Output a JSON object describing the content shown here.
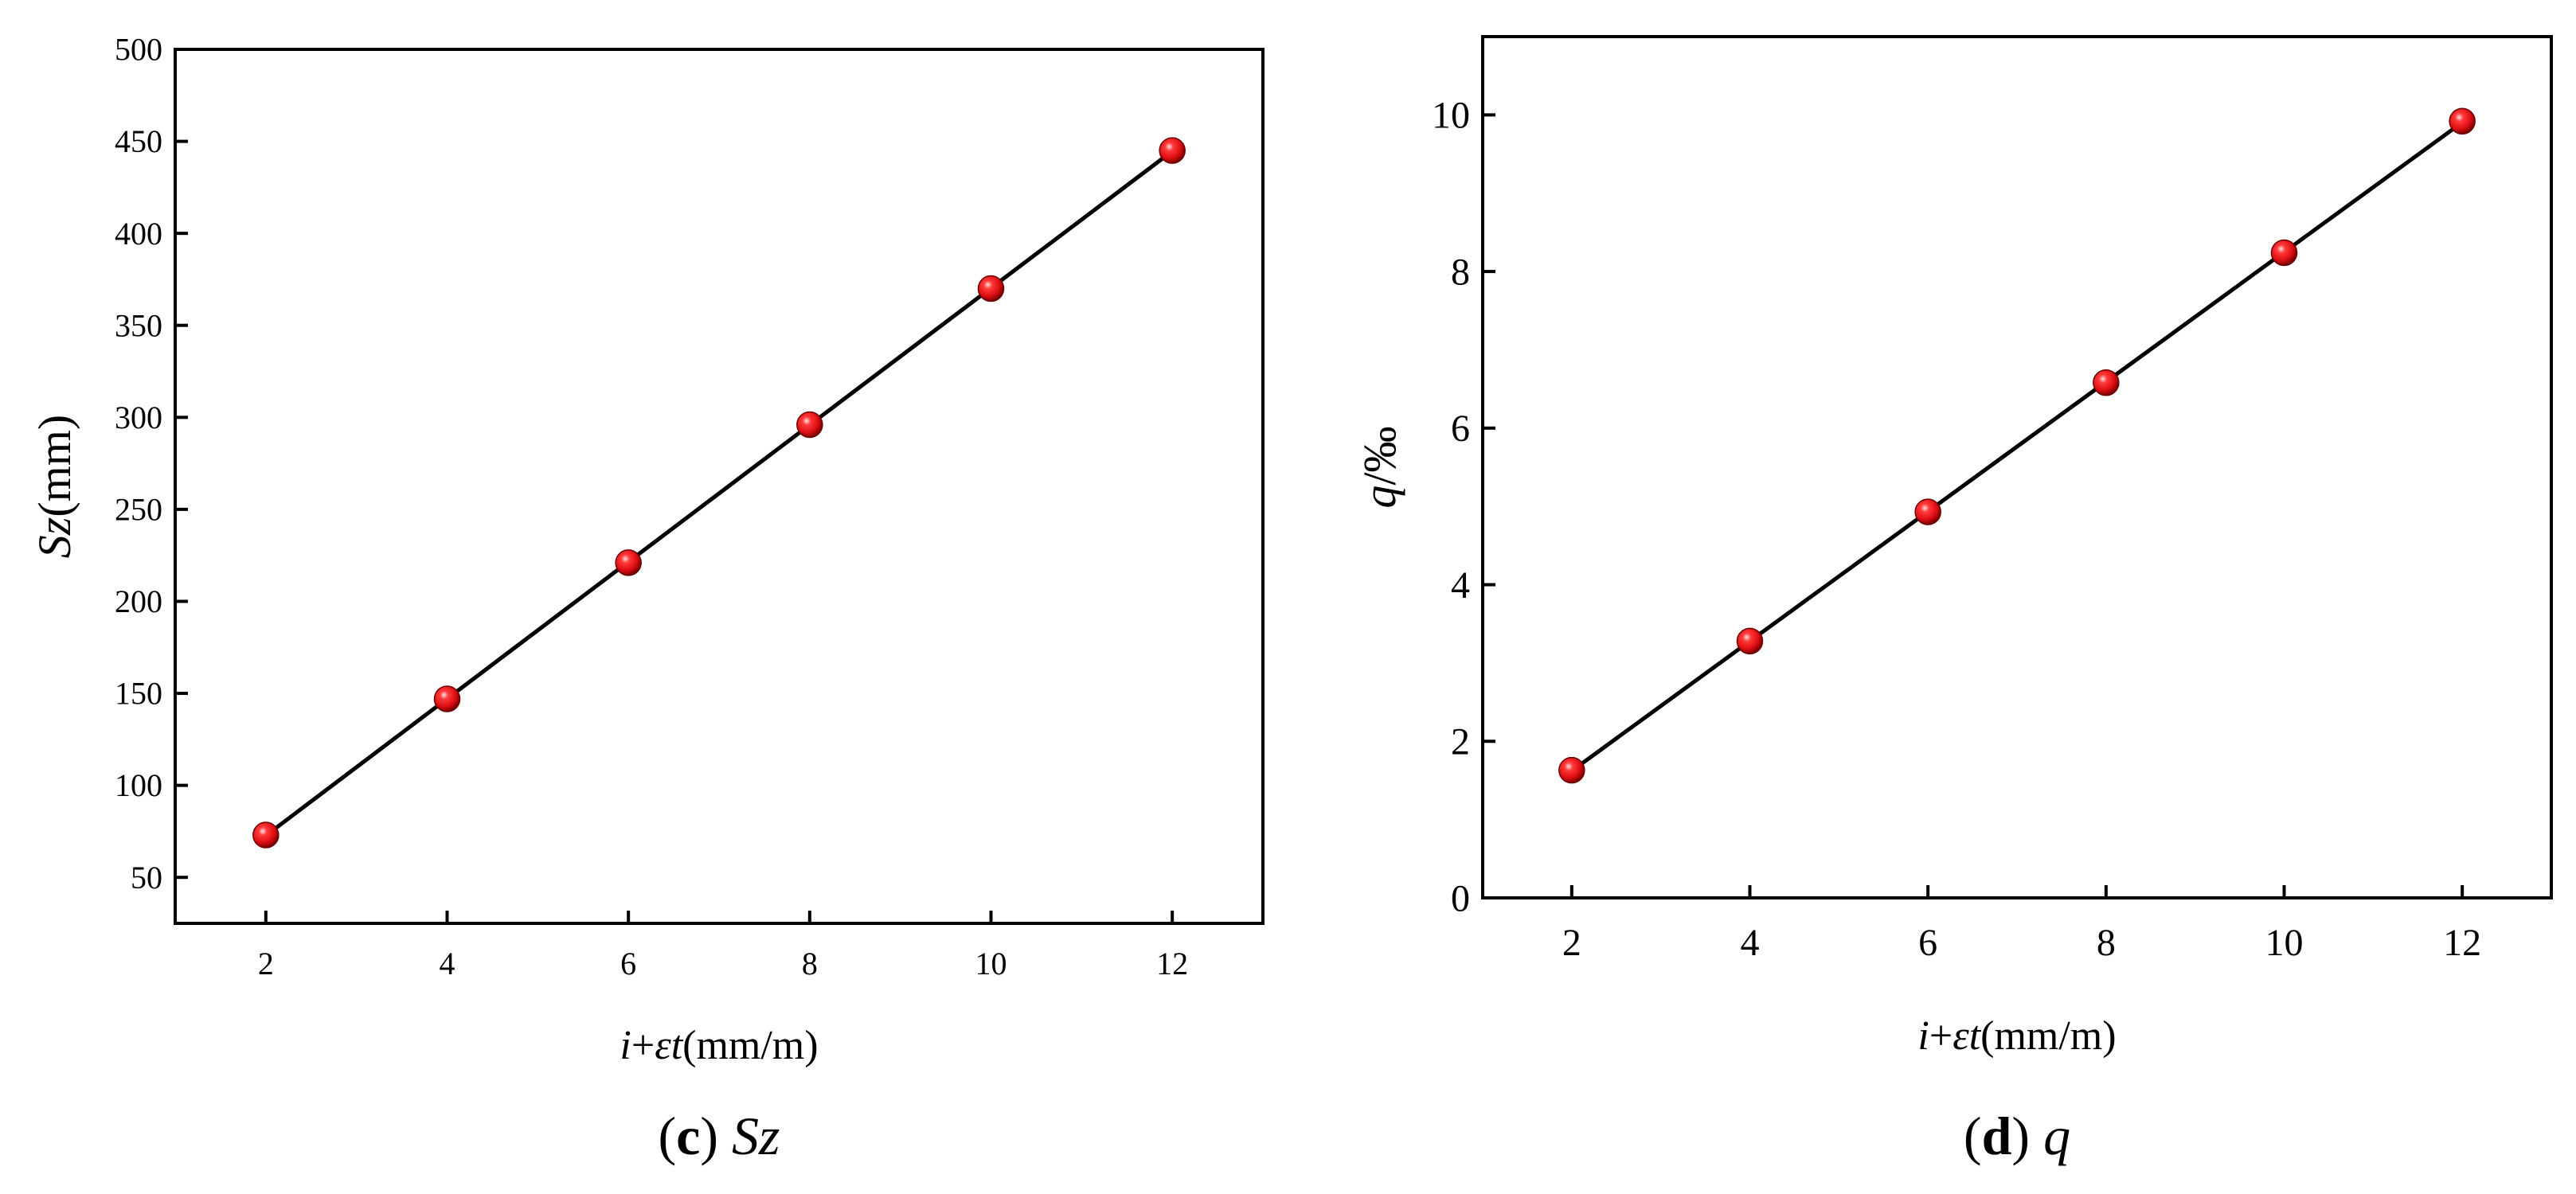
{
  "chart_data": [
    {
      "id": "c",
      "type": "scatter",
      "caption_letter": "c",
      "caption_text": "Sz",
      "xlabel": "i+εt(mm/m)",
      "ylabel": "Sz(mm)",
      "xlim": [
        1,
        13
      ],
      "ylim": [
        25,
        500
      ],
      "xticks": [
        2,
        4,
        6,
        8,
        10,
        12
      ],
      "yticks": [
        50,
        100,
        150,
        200,
        250,
        300,
        350,
        400,
        450,
        500
      ],
      "grid": false,
      "legend": "none",
      "fit_line": true,
      "series": [
        {
          "x": [
            2,
            4,
            6,
            8,
            10,
            12
          ],
          "values": [
            73,
            147,
            221,
            296,
            370,
            445
          ]
        }
      ]
    },
    {
      "id": "d",
      "type": "scatter",
      "caption_letter": "d",
      "caption_text": "q",
      "xlabel": "i+εt(mm/m)",
      "ylabel": "q/‰",
      "xlim": [
        1,
        13
      ],
      "ylim": [
        0,
        11
      ],
      "xticks": [
        2,
        4,
        6,
        8,
        10,
        12
      ],
      "yticks": [
        0,
        2,
        4,
        6,
        8,
        10
      ],
      "grid": false,
      "legend": "none",
      "fit_line": true,
      "series": [
        {
          "x": [
            2,
            4,
            6,
            8,
            10,
            12
          ],
          "values": [
            1.63,
            3.28,
            4.93,
            6.58,
            8.24,
            9.92
          ]
        }
      ]
    }
  ],
  "colors": {
    "marker": "#e8141c",
    "marker_highlight": "#ffd6d6",
    "marker_dark": "#8a0000",
    "line": "#000000",
    "axis": "#000000"
  }
}
